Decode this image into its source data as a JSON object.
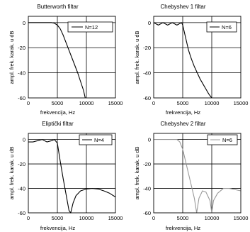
{
  "figure": {
    "panels": [
      {
        "title": "Butterworth filtar",
        "legend": "N=12",
        "curve_color": "#000000"
      },
      {
        "title": "Chebyshev 1 filtar",
        "legend": "N=6",
        "curve_color": "#000000"
      },
      {
        "title": "Eliptički filtar",
        "legend": "N=4",
        "curve_color": "#000000"
      },
      {
        "title": "Chebyshev 2 filtar",
        "legend": "N=6",
        "curve_color": "#999999"
      }
    ]
  },
  "chart_data": [
    {
      "type": "line",
      "title": "Butterworth filtar",
      "xlabel": "frekvencija, Hz",
      "ylabel": "ampl. frek. karak. u dB",
      "xlim": [
        0,
        15000
      ],
      "ylim": [
        -60,
        5
      ],
      "xticks": [
        0,
        5000,
        10000,
        15000
      ],
      "yticks": [
        0,
        -20,
        -40,
        -60
      ],
      "grid": true,
      "legend_position": "top-right",
      "series": [
        {
          "name": "N=12",
          "x": [
            0,
            4000,
            4500,
            5000,
            5500,
            6000,
            6500,
            7000,
            7500,
            8000,
            8500,
            9000,
            9500,
            9800
          ],
          "y": [
            0,
            0,
            -0.5,
            -2,
            -5,
            -10,
            -16,
            -22,
            -28,
            -34,
            -40,
            -47,
            -54,
            -60
          ]
        }
      ]
    },
    {
      "type": "line",
      "title": "Chebyshev 1 filtar",
      "xlabel": "frekvencija, Hz",
      "ylabel": "ampl. frek. karak. u dB",
      "xlim": [
        0,
        15000
      ],
      "ylim": [
        -60,
        5
      ],
      "xticks": [
        0,
        5000,
        10000,
        15000
      ],
      "yticks": [
        0,
        -20,
        -40,
        -60
      ],
      "grid": true,
      "legend_position": "top-right",
      "series": [
        {
          "name": "N=6",
          "x": [
            0,
            400,
            800,
            1200,
            1600,
            2000,
            2400,
            2800,
            3200,
            3600,
            4000,
            4400,
            4800,
            5000,
            5500,
            6000,
            6500,
            7000,
            7500,
            8000,
            8500,
            9000,
            9500,
            10000
          ],
          "y": [
            0,
            -1,
            -2,
            -1,
            0,
            -1,
            -2,
            -1,
            0,
            -1,
            -2,
            -1,
            0,
            -2,
            -12,
            -22,
            -29,
            -35,
            -40,
            -45,
            -49,
            -53,
            -57,
            -60
          ]
        }
      ]
    },
    {
      "type": "line",
      "title": "Eliptički filtar",
      "xlabel": "frekvencija, Hz",
      "ylabel": "ampl. frek. karak. u dB",
      "xlim": [
        0,
        15000
      ],
      "ylim": [
        -60,
        5
      ],
      "xticks": [
        0,
        5000,
        10000,
        15000
      ],
      "yticks": [
        0,
        -20,
        -40,
        -60
      ],
      "grid": true,
      "legend_position": "top-right",
      "series": [
        {
          "name": "N=4",
          "x": [
            0,
            800,
            1600,
            2400,
            3200,
            4000,
            4500,
            5000,
            5500,
            6000,
            6500,
            7000,
            7300,
            7700,
            8200,
            9000,
            10000,
            11000,
            12000,
            13000,
            14000,
            15000
          ],
          "y": [
            -2,
            -2,
            -1,
            0,
            -2,
            -1,
            0,
            -3,
            -18,
            -32,
            -45,
            -58,
            -60,
            -52,
            -46,
            -42,
            -40.5,
            -40,
            -40.5,
            -42,
            -44,
            -47
          ]
        }
      ]
    },
    {
      "type": "line",
      "title": "Chebyshev 2 filtar",
      "xlabel": "frekvencija, Hz",
      "ylabel": "ampl. frek. karak. u dB",
      "xlim": [
        0,
        15000
      ],
      "ylim": [
        -60,
        5
      ],
      "xticks": [
        0,
        5000,
        10000,
        15000
      ],
      "yticks": [
        0,
        -20,
        -40,
        -60
      ],
      "grid": true,
      "legend_position": "top-right",
      "series": [
        {
          "name": "N=6",
          "x": [
            0,
            3000,
            4000,
            4500,
            5000,
            5500,
            6000,
            6500,
            7000,
            7400,
            7800,
            8400,
            9000,
            9700,
            10000,
            10300,
            11000,
            12000,
            13000,
            14000,
            15000
          ],
          "y": [
            0,
            0,
            0,
            -2,
            -8,
            -18,
            -28,
            -38,
            -48,
            -60,
            -48,
            -42,
            -43,
            -50,
            -60,
            -50,
            -44,
            -40,
            -40,
            -41,
            -42
          ]
        }
      ]
    }
  ]
}
